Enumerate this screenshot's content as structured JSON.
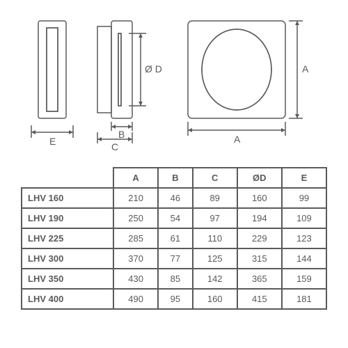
{
  "diagram": {
    "labels": {
      "A": "A",
      "B": "B",
      "C": "C",
      "D": "Ø D",
      "E": "E"
    },
    "colors": {
      "stroke": "#5a5a5a",
      "hatch": "#808080"
    }
  },
  "table": {
    "columns": [
      "A",
      "B",
      "C",
      "ØD",
      "E"
    ],
    "rows": [
      {
        "model": "LHV 160",
        "vals": [
          "210",
          "46",
          "89",
          "160",
          "99"
        ]
      },
      {
        "model": "LHV 190",
        "vals": [
          "250",
          "54",
          "97",
          "194",
          "109"
        ]
      },
      {
        "model": "LHV 225",
        "vals": [
          "285",
          "61",
          "110",
          "229",
          "123"
        ]
      },
      {
        "model": "LHV 300",
        "vals": [
          "370",
          "77",
          "125",
          "315",
          "144"
        ]
      },
      {
        "model": "LHV 350",
        "vals": [
          "430",
          "85",
          "142",
          "365",
          "159"
        ]
      },
      {
        "model": "LHV 400",
        "vals": [
          "490",
          "95",
          "160",
          "415",
          "181"
        ]
      }
    ],
    "border_color": "#5a5a5a",
    "text_color": "#5a5a5a",
    "header_fontsize": 13,
    "cell_fontsize": 13
  }
}
